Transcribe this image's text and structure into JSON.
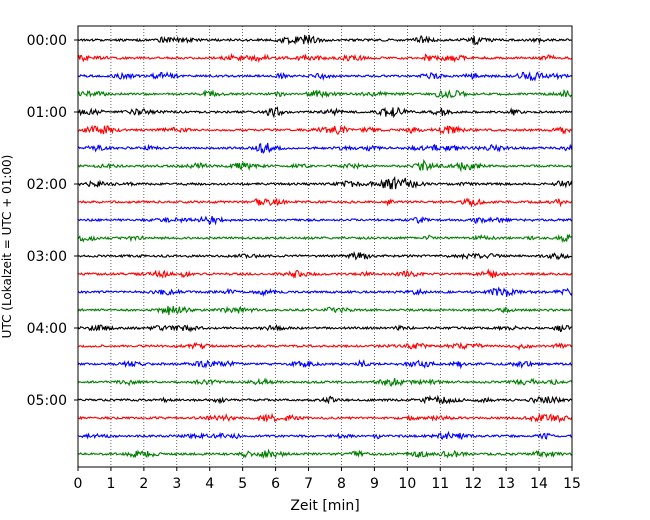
{
  "chart_data": {
    "type": "line",
    "title": "",
    "xlabel": "Zeit  [min]",
    "ylabel": "UTC (Lokalzeit = UTC + 01:00)",
    "xlim": [
      0,
      15
    ],
    "x_ticks": [
      "0",
      "1",
      "2",
      "3",
      "4",
      "5",
      "6",
      "7",
      "8",
      "9",
      "10",
      "11",
      "12",
      "13",
      "14",
      "15"
    ],
    "y_tick_labels": [
      "00:00",
      "01:00",
      "02:00",
      "03:00",
      "04:00",
      "05:00"
    ],
    "traces_per_hour": 4,
    "trace_minutes": 15,
    "grid": "vertical dotted",
    "colors": [
      "#000000",
      "#ff0000",
      "#0000ff",
      "#008000"
    ],
    "series": [
      {
        "start": "00:00",
        "color": "#000000"
      },
      {
        "start": "00:15",
        "color": "#ff0000"
      },
      {
        "start": "00:30",
        "color": "#0000ff"
      },
      {
        "start": "00:45",
        "color": "#008000"
      },
      {
        "start": "01:00",
        "color": "#000000"
      },
      {
        "start": "01:15",
        "color": "#ff0000"
      },
      {
        "start": "01:30",
        "color": "#0000ff"
      },
      {
        "start": "01:45",
        "color": "#008000"
      },
      {
        "start": "02:00",
        "color": "#000000",
        "event_at_min": 9.7
      },
      {
        "start": "02:15",
        "color": "#ff0000"
      },
      {
        "start": "02:30",
        "color": "#0000ff"
      },
      {
        "start": "02:45",
        "color": "#008000"
      },
      {
        "start": "03:00",
        "color": "#000000"
      },
      {
        "start": "03:15",
        "color": "#ff0000"
      },
      {
        "start": "03:30",
        "color": "#0000ff"
      },
      {
        "start": "03:45",
        "color": "#008000"
      },
      {
        "start": "04:00",
        "color": "#000000"
      },
      {
        "start": "04:15",
        "color": "#ff0000"
      },
      {
        "start": "04:30",
        "color": "#0000ff"
      },
      {
        "start": "04:45",
        "color": "#008000"
      },
      {
        "start": "05:00",
        "color": "#000000"
      },
      {
        "start": "05:15",
        "color": "#ff0000"
      },
      {
        "start": "05:30",
        "color": "#0000ff"
      },
      {
        "start": "05:45",
        "color": "#008000"
      }
    ]
  }
}
